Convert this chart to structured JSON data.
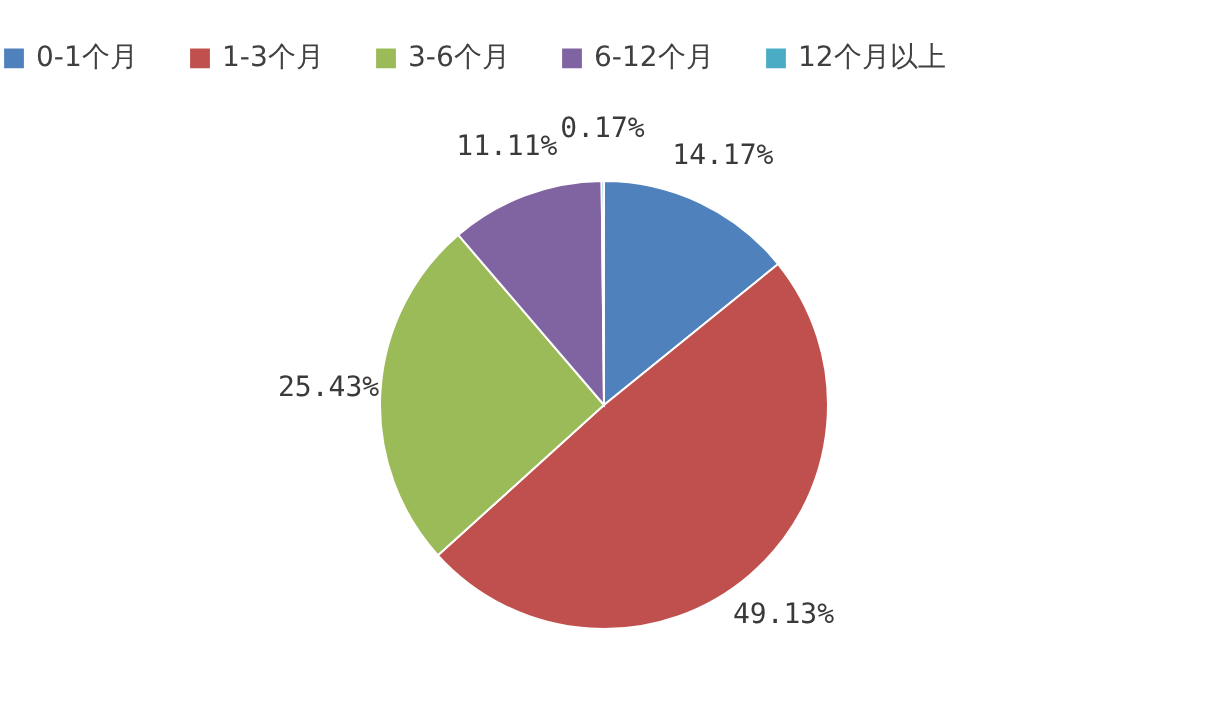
{
  "chart_data": {
    "type": "pie",
    "categories": [
      "0-1个月",
      "1-3个月",
      "3-6个月",
      "6-12个月",
      "12个月以上"
    ],
    "values": [
      14.17,
      49.13,
      25.43,
      11.11,
      0.17
    ],
    "colors": [
      "#4f81bd",
      "#c0504d",
      "#9bbb59",
      "#8064a2",
      "#4bacc6"
    ],
    "value_labels": [
      "14.17%",
      "49.13%",
      "25.43%",
      "11.11%",
      "0.17%"
    ],
    "legend": "top"
  }
}
